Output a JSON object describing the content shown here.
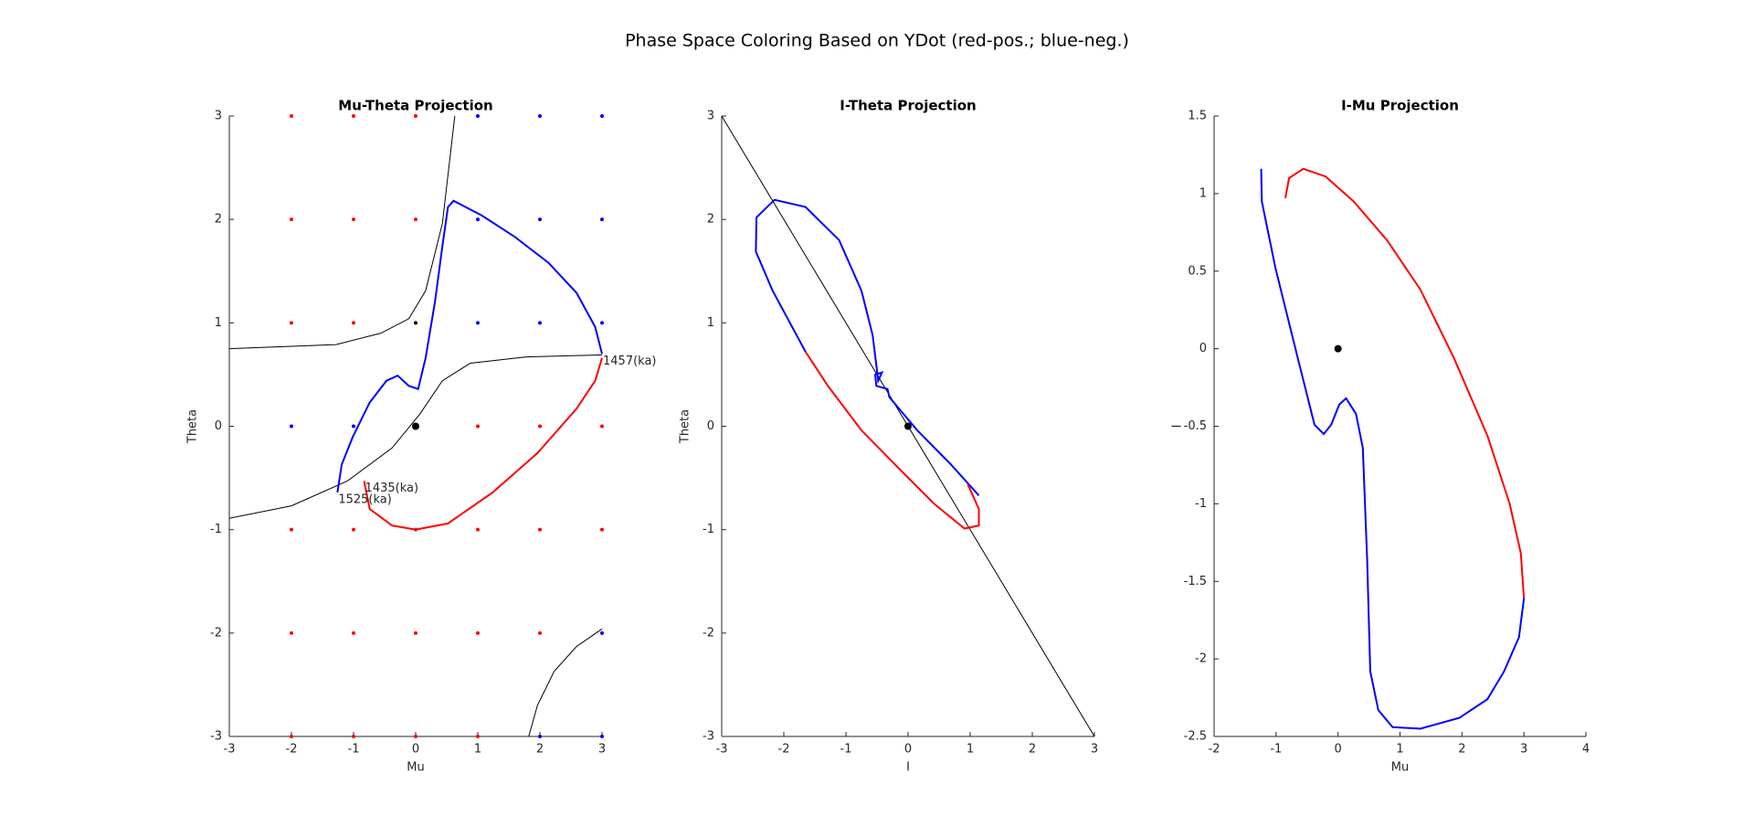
{
  "title": "Phase Space Coloring Based on YDot (red-pos.; blue-neg.)",
  "chart_data": [
    {
      "type": "line",
      "title": "Mu-Theta Projection",
      "xlabel": "Mu",
      "ylabel": "Theta",
      "xlim": [
        -3,
        3
      ],
      "ylim": [
        -3,
        3
      ],
      "xticks": [
        -3,
        -2,
        -1,
        0,
        1,
        2,
        3
      ],
      "yticks": [
        -3,
        -2,
        -1,
        0,
        1,
        2,
        3
      ],
      "series": [
        {
          "type": "scatter",
          "color": "#ff0000",
          "x": [
            -2,
            -1,
            0,
            -2,
            -1,
            0,
            -2,
            -1,
            1,
            2,
            3,
            -2,
            -1,
            0,
            1,
            2,
            3,
            -2,
            -1,
            0,
            1,
            2,
            -2,
            -1,
            0,
            1
          ],
          "values": [
            3,
            3,
            3,
            2,
            2,
            2,
            1,
            1,
            0,
            0,
            0,
            -1,
            -1,
            -1,
            -1,
            -1,
            -1,
            -2,
            -2,
            -2,
            -2,
            -2,
            -3,
            -3,
            -3,
            -3
          ]
        },
        {
          "type": "scatter",
          "color": "#0000ff",
          "x": [
            1,
            2,
            3,
            1,
            2,
            3,
            1,
            2,
            3,
            -2,
            -1,
            3,
            2,
            3
          ],
          "values": [
            3,
            3,
            3,
            2,
            2,
            2,
            1,
            1,
            1,
            0,
            0,
            -2,
            -3,
            -3
          ]
        },
        {
          "type": "scatter",
          "color": "#000000",
          "x": [
            0
          ],
          "values": [
            1
          ]
        },
        {
          "type": "line",
          "color": "#000000",
          "x": [
            -3,
            -1.28,
            -0.56,
            -0.11,
            0.16,
            0.43,
            0.63
          ],
          "values": [
            0.75,
            0.79,
            0.9,
            1.04,
            1.31,
            1.96,
            3
          ]
        },
        {
          "type": "line",
          "color": "#000000",
          "x": [
            -3,
            -2,
            -1.1,
            -0.38,
            0.07,
            0.43,
            0.88,
            1.78,
            3
          ],
          "values": [
            -0.89,
            -0.77,
            -0.53,
            -0.21,
            0.12,
            0.44,
            0.61,
            0.67,
            0.69
          ]
        },
        {
          "type": "line",
          "color": "#000000",
          "x": [
            1.82,
            1.96,
            2.23,
            2.59,
            3
          ],
          "values": [
            -3,
            -2.7,
            -2.37,
            -2.13,
            -1.96
          ]
        },
        {
          "type": "line",
          "color": "#0000ff",
          "x": [
            3,
            2.89,
            2.59,
            2.14,
            1.6,
            1.06,
            0.61,
            0.52,
            0.43,
            0.31,
            0.16,
            0.04,
            -0.11,
            -0.29,
            -0.47,
            -0.74,
            -1.01,
            -1.19,
            -1.26
          ],
          "values": [
            0.7,
            0.96,
            1.29,
            1.58,
            1.83,
            2.04,
            2.18,
            2.12,
            1.74,
            1.2,
            0.66,
            0.36,
            0.39,
            0.49,
            0.44,
            0.23,
            -0.1,
            -0.37,
            -0.64
          ]
        },
        {
          "type": "line",
          "color": "#ff0000",
          "x": [
            -0.83,
            -0.74,
            -0.38,
            0,
            0.52,
            1.24,
            1.96,
            2.59,
            2.89,
            3
          ],
          "values": [
            -0.53,
            -0.8,
            -0.96,
            -1,
            -0.94,
            -0.64,
            -0.26,
            0.17,
            0.44,
            0.66
          ]
        },
        {
          "type": "dot",
          "color": "#000000",
          "x": [
            0
          ],
          "values": [
            0
          ]
        }
      ],
      "annotations": [
        {
          "text": "1457(ka)",
          "x": 3,
          "y": 0.7
        },
        {
          "text": "1435(ka)",
          "x": -0.83,
          "y": -0.53
        },
        {
          "text": "1525(ka)",
          "x": -1.26,
          "y": -0.64
        }
      ]
    },
    {
      "type": "line",
      "title": "I-Theta Projection",
      "xlabel": "I",
      "ylabel": "Theta",
      "xlim": [
        -3,
        3
      ],
      "ylim": [
        -3,
        3
      ],
      "xticks": [
        -3,
        -2,
        -1,
        0,
        1,
        2,
        3
      ],
      "yticks": [
        -3,
        -2,
        -1,
        0,
        1,
        2,
        3
      ],
      "series": [
        {
          "type": "line",
          "color": "#000000",
          "x": [
            -3,
            3
          ],
          "values": [
            3,
            -3
          ]
        },
        {
          "type": "line",
          "color": "#0000ff",
          "x": [
            1.14,
            0.69,
            0.15,
            -0.3,
            -0.33,
            -0.51,
            -0.53,
            -0.42,
            -0.48,
            -0.57,
            -0.75,
            -1.11,
            -1.65,
            -2.15,
            -2.44,
            -2.45,
            -2.18,
            -1.65
          ],
          "values": [
            -0.67,
            -0.37,
            -0.04,
            0.28,
            0.36,
            0.39,
            0.5,
            0.52,
            0.44,
            0.88,
            1.31,
            1.8,
            2.12,
            2.19,
            2.02,
            1.69,
            1.31,
            0.72
          ]
        },
        {
          "type": "line",
          "color": "#ff0000",
          "x": [
            -1.65,
            -1.29,
            -0.75,
            -0.21,
            0.42,
            0.91,
            1.14,
            1.14,
            0.96
          ],
          "values": [
            0.72,
            0.39,
            -0.04,
            -0.37,
            -0.75,
            -0.99,
            -0.96,
            -0.8,
            -0.56
          ]
        },
        {
          "type": "dot",
          "color": "#000000",
          "x": [
            0
          ],
          "values": [
            0
          ]
        }
      ]
    },
    {
      "type": "line",
      "title": "I-Mu Projection",
      "xlabel": "Mu",
      "ylabel": "I",
      "xlim": [
        -2,
        4
      ],
      "ylim": [
        -2.5,
        1.5
      ],
      "xticks": [
        -2,
        -1,
        0,
        1,
        2,
        3,
        4
      ],
      "yticks": [
        -2.5,
        -2,
        -1.5,
        -1,
        -0.5,
        0,
        0.5,
        1,
        1.5
      ],
      "series": [
        {
          "type": "line",
          "color": "#ff0000",
          "x": [
            -0.85,
            -0.79,
            -0.56,
            -0.2,
            0.25,
            0.79,
            1.33,
            1.87,
            2.41,
            2.77,
            2.95,
            3
          ],
          "values": [
            0.97,
            1.1,
            1.16,
            1.11,
            0.95,
            0.7,
            0.38,
            -0.06,
            -0.56,
            -1,
            -1.32,
            -1.61
          ]
        },
        {
          "type": "line",
          "color": "#0000ff",
          "x": [
            3,
            2.92,
            2.68,
            2.41,
            1.96,
            1.33,
            0.88,
            0.65,
            0.52,
            0.47,
            0.4,
            0.29,
            0.13,
            0.02,
            -0.11,
            -0.23,
            -0.38,
            -0.65,
            -1.01,
            -1.23,
            -1.24
          ],
          "values": [
            -1.61,
            -1.86,
            -2.08,
            -2.26,
            -2.38,
            -2.45,
            -2.44,
            -2.33,
            -2.08,
            -1.36,
            -0.64,
            -0.42,
            -0.32,
            -0.36,
            -0.49,
            -0.55,
            -0.49,
            -0.06,
            0.52,
            0.95,
            1.16
          ]
        },
        {
          "type": "dot",
          "color": "#000000",
          "x": [
            0
          ],
          "values": [
            0
          ]
        }
      ]
    }
  ]
}
